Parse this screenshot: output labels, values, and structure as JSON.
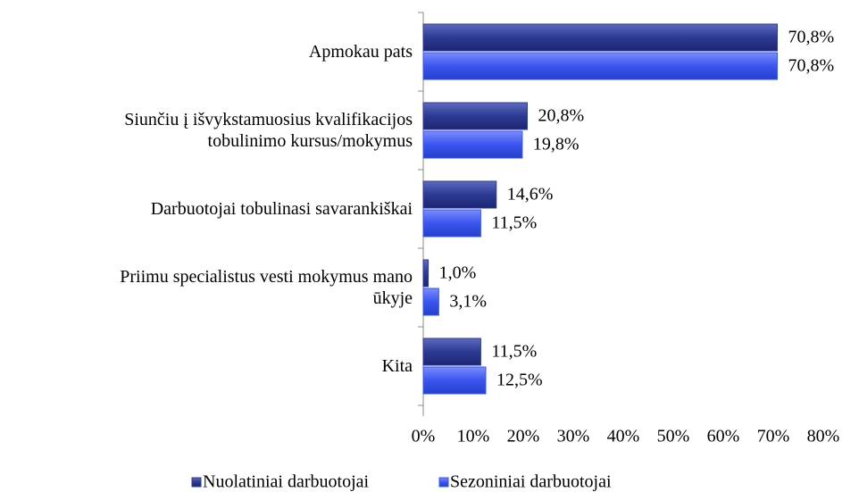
{
  "chart_data": {
    "type": "hbar",
    "categories": [
      "Apmokau pats",
      "Siunčiu į išvykstamuosius kvalifikacijos\ntobulinimo kursus/mokymus",
      "Darbuotojai tobulinasi savarankiškai",
      "Priimu specialistus vesti mokymus mano\nūkyje",
      "Kita"
    ],
    "series": [
      {
        "name": "Nuolatiniai darbuotojai",
        "color": "#2c3a94",
        "values": [
          70.8,
          20.8,
          14.6,
          1.0,
          11.5
        ],
        "value_labels": [
          "70,8%",
          "20,8%",
          "14,6%",
          "1,0%",
          "11,5%"
        ]
      },
      {
        "name": "Sezoniniai darbuotojai",
        "color": "#3a55f0",
        "values": [
          70.8,
          19.8,
          11.5,
          3.1,
          12.5
        ],
        "value_labels": [
          "70,8%",
          "19,8%",
          "11,5%",
          "3,1%",
          "12,5%"
        ]
      }
    ],
    "xlim": [
      0,
      80
    ],
    "xticks": [
      {
        "value": 0,
        "label": "0%"
      },
      {
        "value": 10,
        "label": "10%"
      },
      {
        "value": 20,
        "label": "20%"
      },
      {
        "value": 30,
        "label": "30%"
      },
      {
        "value": 40,
        "label": "40%"
      },
      {
        "value": 50,
        "label": "50%"
      },
      {
        "value": 60,
        "label": "60%"
      },
      {
        "value": 70,
        "label": "70%"
      },
      {
        "value": 80,
        "label": "80%"
      }
    ],
    "legend": "bottom"
  }
}
